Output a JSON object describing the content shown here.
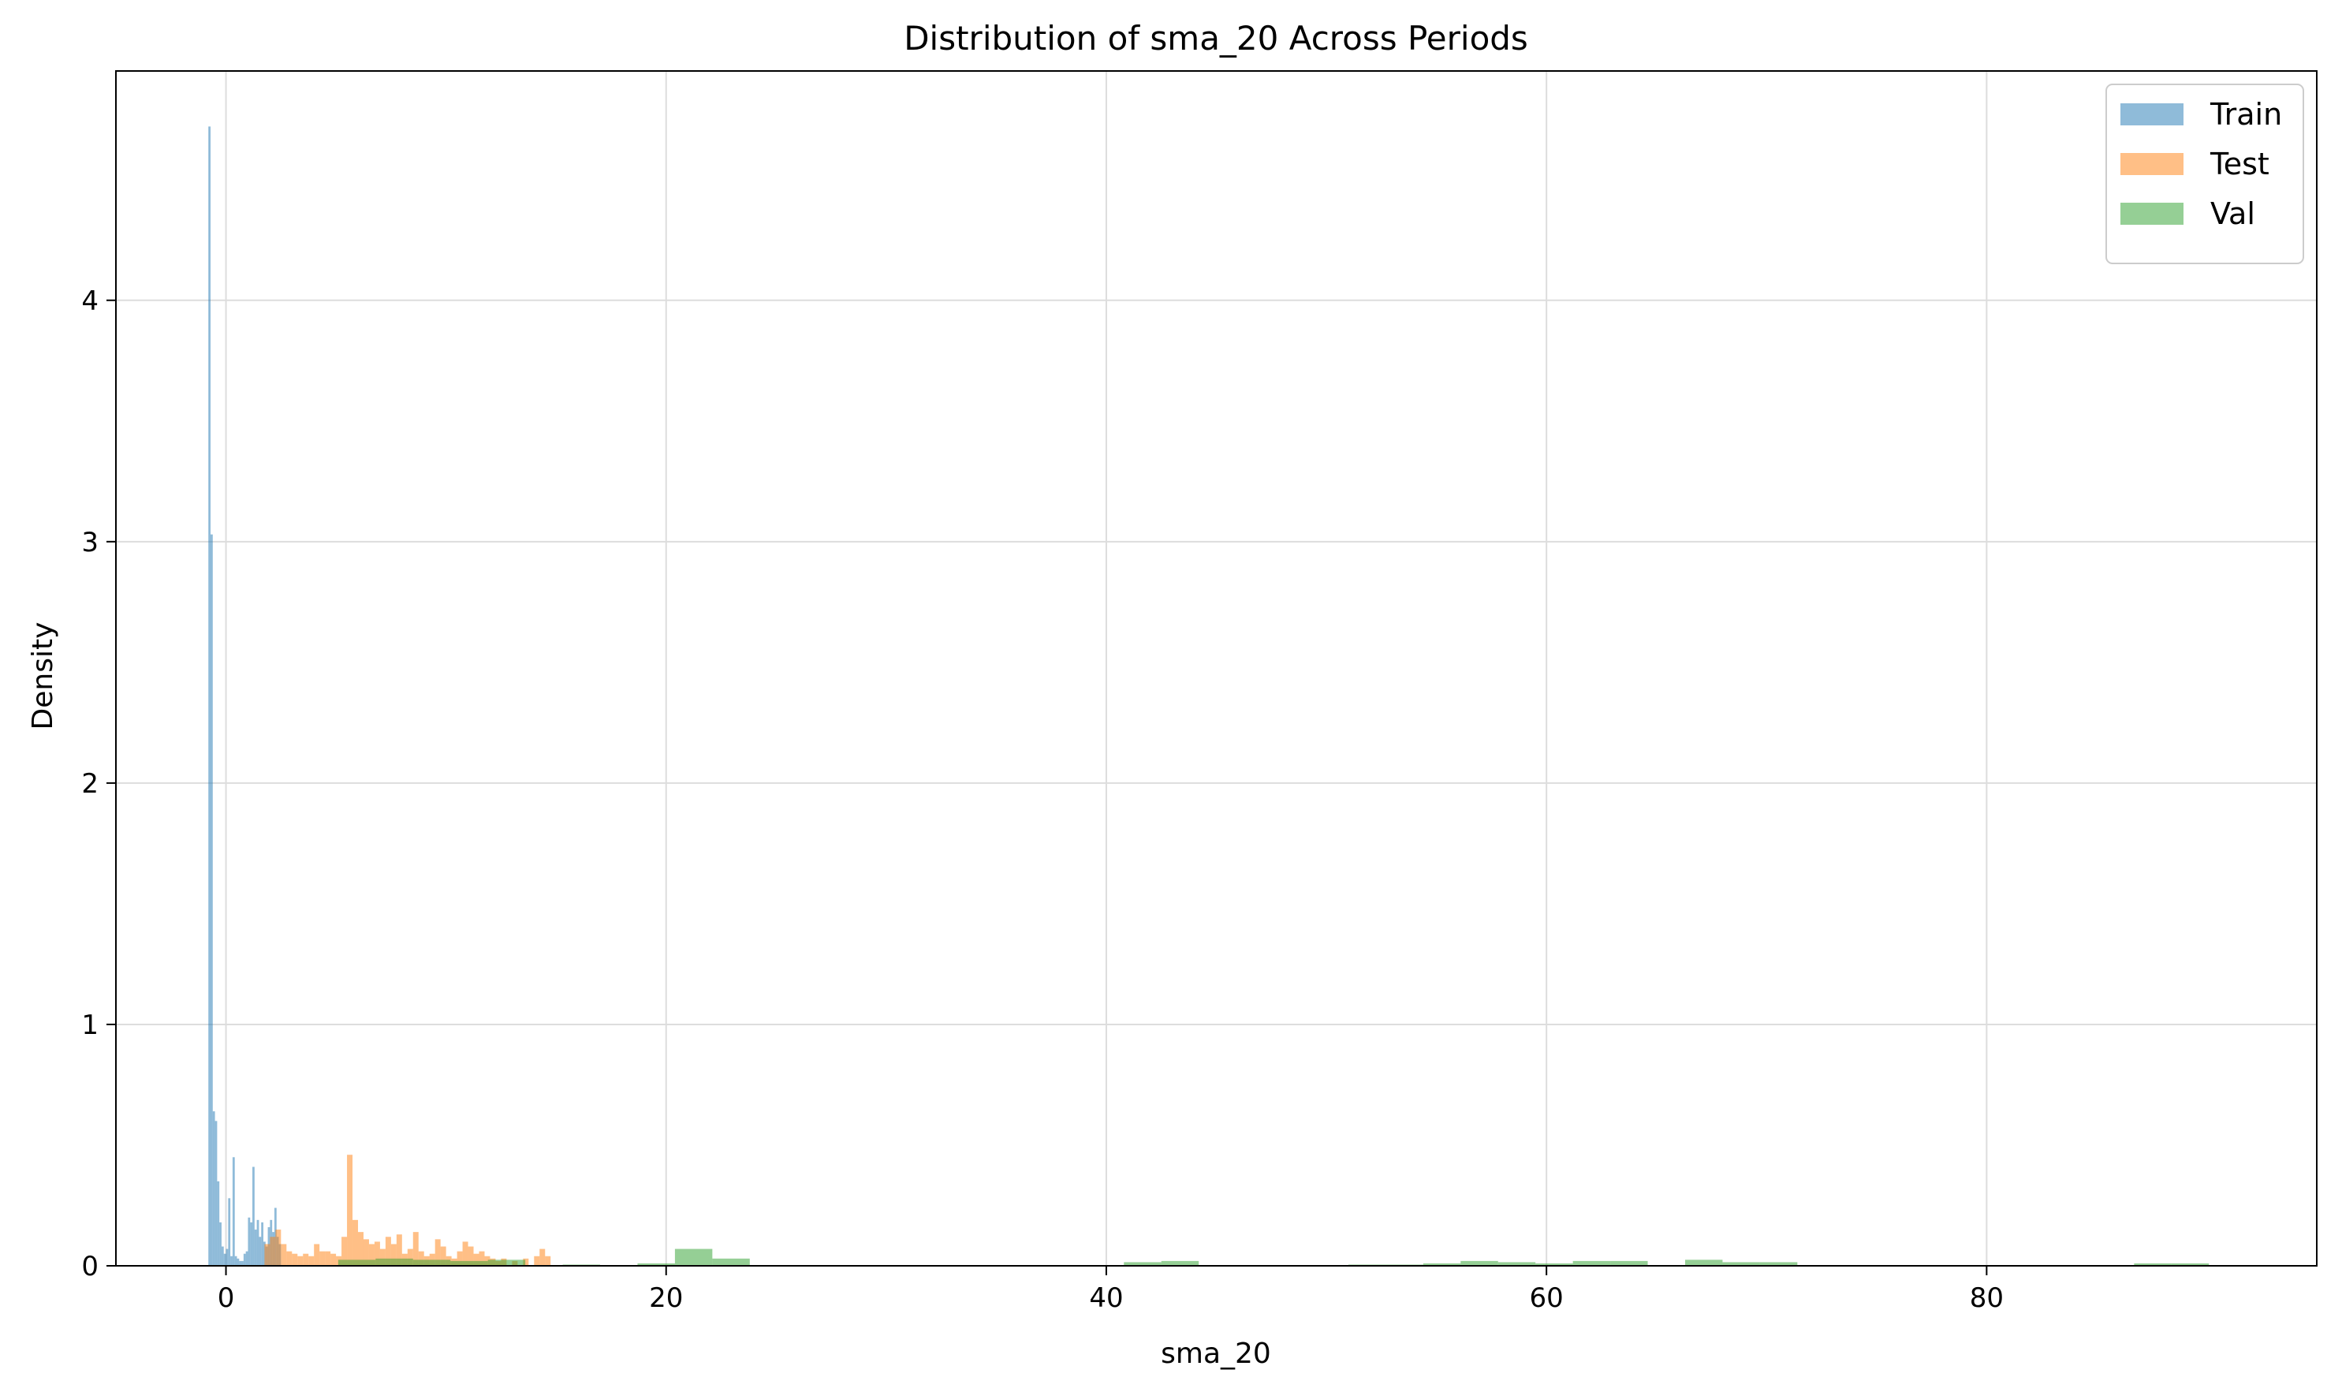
{
  "chart_data": {
    "type": "histogram",
    "title": "Distribution of sma_20 Across Periods",
    "xlabel": "sma_20",
    "ylabel": "Density",
    "xlim": [
      -5,
      95
    ],
    "ylim": [
      0,
      4.95
    ],
    "xticks": [
      0,
      20,
      40,
      60,
      80
    ],
    "yticks": [
      0,
      1,
      2,
      3,
      4
    ],
    "grid": true,
    "legend_position": "top-right",
    "series": [
      {
        "name": "Train",
        "color": "#1f77b4",
        "bin_width": 0.1,
        "bins": [
          [
            -0.8,
            4.72
          ],
          [
            -0.7,
            3.03
          ],
          [
            -0.6,
            0.64
          ],
          [
            -0.5,
            0.6
          ],
          [
            -0.4,
            0.35
          ],
          [
            -0.3,
            0.18
          ],
          [
            -0.2,
            0.08
          ],
          [
            -0.1,
            0.05
          ],
          [
            0.0,
            0.07
          ],
          [
            0.1,
            0.28
          ],
          [
            0.2,
            0.04
          ],
          [
            0.3,
            0.45
          ],
          [
            0.4,
            0.04
          ],
          [
            0.5,
            0.03
          ],
          [
            0.6,
            0.02
          ],
          [
            0.7,
            0.02
          ],
          [
            0.8,
            0.05
          ],
          [
            0.9,
            0.06
          ],
          [
            1.0,
            0.2
          ],
          [
            1.1,
            0.18
          ],
          [
            1.2,
            0.41
          ],
          [
            1.3,
            0.15
          ],
          [
            1.4,
            0.19
          ],
          [
            1.5,
            0.12
          ],
          [
            1.6,
            0.18
          ],
          [
            1.7,
            0.1
          ],
          [
            1.8,
            0.08
          ],
          [
            1.9,
            0.16
          ],
          [
            2.0,
            0.19
          ],
          [
            2.1,
            0.14
          ],
          [
            2.2,
            0.24
          ],
          [
            2.3,
            0.12
          ],
          [
            2.4,
            0.09
          ]
        ]
      },
      {
        "name": "Test",
        "color": "#ff7f0e",
        "bin_width": 0.25,
        "bins": [
          [
            1.75,
            0.09
          ],
          [
            2.0,
            0.12
          ],
          [
            2.25,
            0.15
          ],
          [
            2.5,
            0.09
          ],
          [
            2.75,
            0.06
          ],
          [
            3.0,
            0.05
          ],
          [
            3.25,
            0.04
          ],
          [
            3.5,
            0.05
          ],
          [
            3.75,
            0.04
          ],
          [
            4.0,
            0.09
          ],
          [
            4.25,
            0.06
          ],
          [
            4.5,
            0.06
          ],
          [
            4.75,
            0.05
          ],
          [
            5.0,
            0.04
          ],
          [
            5.25,
            0.12
          ],
          [
            5.5,
            0.46
          ],
          [
            5.75,
            0.19
          ],
          [
            6.0,
            0.14
          ],
          [
            6.25,
            0.11
          ],
          [
            6.5,
            0.09
          ],
          [
            6.75,
            0.1
          ],
          [
            7.0,
            0.07
          ],
          [
            7.25,
            0.12
          ],
          [
            7.5,
            0.09
          ],
          [
            7.75,
            0.13
          ],
          [
            8.0,
            0.05
          ],
          [
            8.25,
            0.07
          ],
          [
            8.5,
            0.14
          ],
          [
            8.75,
            0.06
          ],
          [
            9.0,
            0.04
          ],
          [
            9.25,
            0.05
          ],
          [
            9.5,
            0.11
          ],
          [
            9.75,
            0.08
          ],
          [
            10.0,
            0.04
          ],
          [
            10.25,
            0.03
          ],
          [
            10.5,
            0.06
          ],
          [
            10.75,
            0.1
          ],
          [
            11.0,
            0.08
          ],
          [
            11.25,
            0.05
          ],
          [
            11.5,
            0.06
          ],
          [
            11.75,
            0.04
          ],
          [
            12.0,
            0.03
          ],
          [
            12.25,
            0.02
          ],
          [
            12.5,
            0.03
          ],
          [
            13.0,
            0.02
          ],
          [
            13.5,
            0.03
          ],
          [
            14.0,
            0.04
          ],
          [
            14.25,
            0.07
          ],
          [
            14.5,
            0.04
          ]
        ]
      },
      {
        "name": "Val",
        "color": "#2ca02c",
        "bin_width": 1.7,
        "bins": [
          [
            5.1,
            0.025
          ],
          [
            6.8,
            0.03
          ],
          [
            8.5,
            0.025
          ],
          [
            10.2,
            0.02
          ],
          [
            11.9,
            0.025
          ],
          [
            15.3,
            0.005
          ],
          [
            18.7,
            0.01
          ],
          [
            20.4,
            0.07
          ],
          [
            22.1,
            0.03
          ],
          [
            40.8,
            0.015
          ],
          [
            42.5,
            0.02
          ],
          [
            51.0,
            0.005
          ],
          [
            52.7,
            0.005
          ],
          [
            54.4,
            0.01
          ],
          [
            56.1,
            0.02
          ],
          [
            57.8,
            0.015
          ],
          [
            59.5,
            0.01
          ],
          [
            61.2,
            0.02
          ],
          [
            62.9,
            0.02
          ],
          [
            66.3,
            0.025
          ],
          [
            68.0,
            0.015
          ],
          [
            69.7,
            0.015
          ],
          [
            86.7,
            0.01
          ],
          [
            88.4,
            0.01
          ]
        ]
      }
    ]
  }
}
